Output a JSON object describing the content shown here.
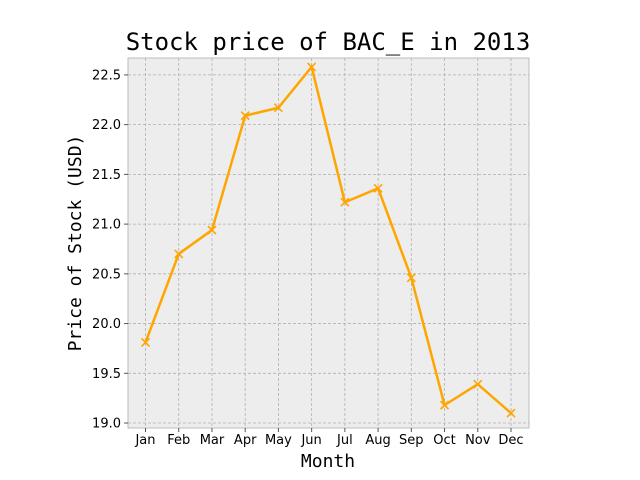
{
  "chart_data": {
    "type": "line",
    "title": "Stock price of BAC_E in 2013",
    "xlabel": "Month",
    "ylabel": "Price of Stock (USD)",
    "categories": [
      "Jan",
      "Feb",
      "Mar",
      "Apr",
      "May",
      "Jun",
      "Jul",
      "Aug",
      "Sep",
      "Oct",
      "Nov",
      "Dec"
    ],
    "series": [
      {
        "values": [
          19.81,
          20.7,
          20.94,
          22.09,
          22.17,
          22.58,
          21.22,
          21.36,
          20.46,
          19.18,
          19.39,
          19.1
        ],
        "color": "#FFA500",
        "marker": "x"
      }
    ],
    "ylim": [
      18.95,
      22.67
    ],
    "yticks": [
      "19.0",
      "19.5",
      "20.0",
      "20.5",
      "21.0",
      "21.5",
      "22.0",
      "22.5"
    ],
    "grid": true
  }
}
